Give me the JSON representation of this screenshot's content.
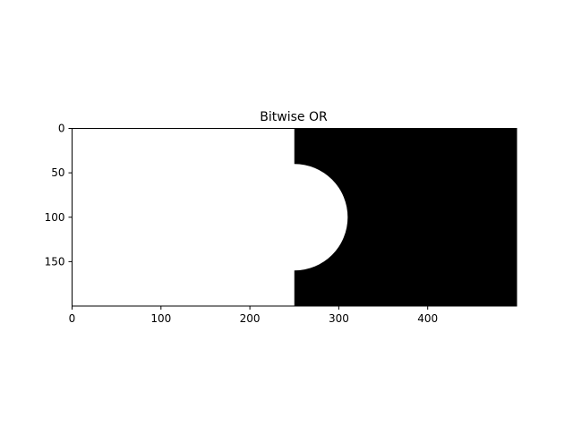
{
  "chart_data": {
    "type": "image",
    "title": "Bitwise OR",
    "xlabel": "",
    "ylabel": "",
    "xlim": [
      0,
      500
    ],
    "ylim": [
      200,
      0
    ],
    "x_ticks": [
      0,
      100,
      200,
      300,
      400
    ],
    "y_ticks": [
      0,
      50,
      100,
      150
    ],
    "image": {
      "width": 500,
      "height": 200,
      "background_color": "#000000",
      "white_rectangle": {
        "x0": 0,
        "x1": 250,
        "y0": 0,
        "y1": 200
      },
      "white_circle": {
        "cx": 250,
        "cy": 100,
        "r": 60
      },
      "foreground_color": "#ffffff"
    }
  }
}
